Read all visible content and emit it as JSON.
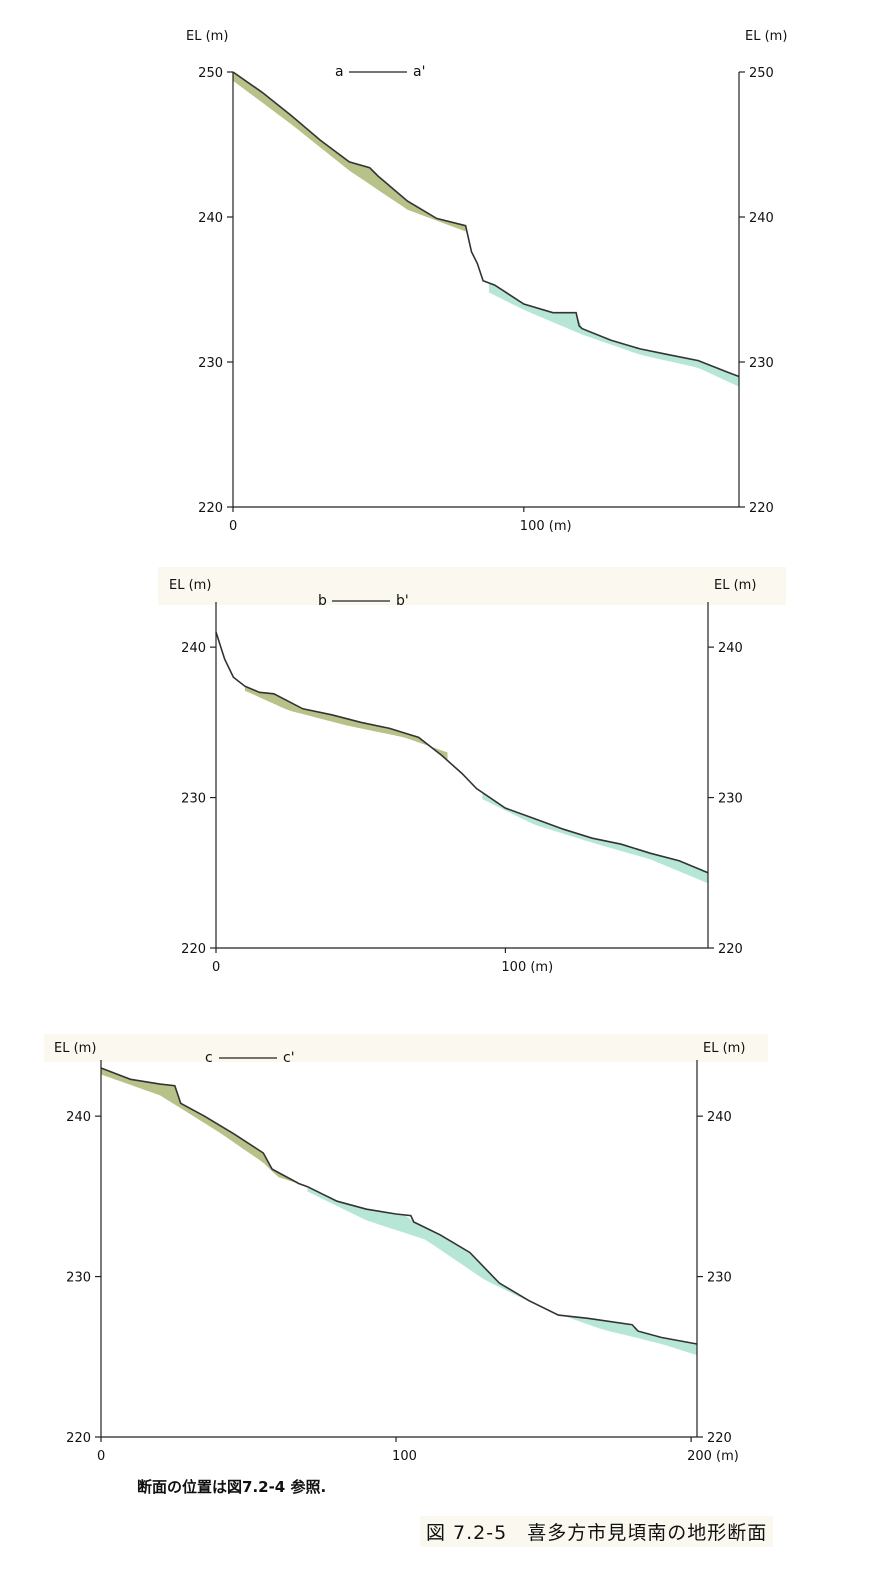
{
  "note": "断面の位置は図7.2-4 参照.",
  "caption": "図 7.2-5　喜多方市見頃南の地形断面",
  "colors": {
    "upper_layer": "#a9b772",
    "lower_layer": "#a8e2cf",
    "line": "#333333"
  },
  "chart_data": [
    {
      "type": "area",
      "section_label": {
        "start": "a",
        "end": "a'"
      },
      "ylabel_left": "EL (m)",
      "ylabel_right": "EL (m)",
      "ylim": [
        220,
        250
      ],
      "yticks": [
        "220",
        "230",
        "240",
        "250"
      ],
      "xlim": [
        0,
        174
      ],
      "xticks": [
        {
          "v": 0,
          "label": "0"
        },
        {
          "v": 100,
          "label": "100 (m)"
        }
      ],
      "ground_profile": {
        "x": [
          0,
          10,
          20,
          30,
          40,
          47,
          49,
          50,
          60,
          70,
          80,
          82,
          84,
          86,
          90,
          100,
          110,
          118,
          119,
          120,
          130,
          140,
          150,
          160,
          170,
          174
        ],
        "y": [
          250,
          248.6,
          247,
          245.3,
          243.8,
          243.4,
          243.0,
          242.8,
          241.1,
          239.9,
          239.4,
          237.6,
          236.8,
          235.6,
          235.3,
          234.0,
          233.4,
          233.4,
          232.5,
          232.3,
          231.5,
          230.9,
          230.5,
          230.1,
          229.3,
          229.0
        ]
      },
      "layers": [
        {
          "name": "upper",
          "x": [
            0,
            20,
            40,
            60,
            80
          ],
          "bottom": [
            249.4,
            246.4,
            243.2,
            240.5,
            239.0
          ]
        },
        {
          "name": "lower",
          "x": [
            88,
            100,
            120,
            140,
            160,
            174
          ],
          "bottom": [
            234.8,
            233.6,
            231.9,
            230.5,
            229.6,
            228.3
          ]
        }
      ]
    },
    {
      "type": "area",
      "section_label": {
        "start": "b",
        "end": "b'"
      },
      "ylabel_left": "EL (m)",
      "ylabel_right": "EL (m)",
      "ylim": [
        220,
        243
      ],
      "yticks": [
        "220",
        "230",
        "240"
      ],
      "xlim": [
        0,
        170
      ],
      "xticks": [
        {
          "v": 0,
          "label": "0"
        },
        {
          "v": 100,
          "label": "100 (m)"
        }
      ],
      "ground_profile": {
        "x": [
          0,
          3,
          6,
          10,
          15,
          20,
          30,
          40,
          50,
          60,
          70,
          78,
          85,
          90,
          100,
          110,
          120,
          130,
          140,
          150,
          160,
          170
        ],
        "y": [
          241.0,
          239.2,
          238.0,
          237.4,
          237.0,
          236.9,
          235.9,
          235.5,
          235.0,
          234.6,
          234.0,
          232.8,
          231.6,
          230.6,
          229.3,
          228.6,
          227.9,
          227.3,
          226.9,
          226.3,
          225.8,
          225.0
        ]
      },
      "layers": [
        {
          "name": "upper",
          "x": [
            10,
            25,
            45,
            65,
            80
          ],
          "bottom": [
            237.1,
            235.8,
            234.8,
            234.0,
            233.0
          ]
        },
        {
          "name": "lower",
          "x": [
            92,
            110,
            130,
            150,
            170
          ],
          "bottom": [
            229.9,
            228.2,
            227.0,
            225.9,
            224.3
          ]
        }
      ]
    },
    {
      "type": "area",
      "section_label": {
        "start": "c",
        "end": "c'"
      },
      "ylabel_left": "EL (m)",
      "ylabel_right": "EL (m)",
      "ylim": [
        220,
        243.5
      ],
      "yticks": [
        "220",
        "230",
        "240"
      ],
      "xlim": [
        0,
        202
      ],
      "xticks": [
        {
          "v": 0,
          "label": "0"
        },
        {
          "v": 100,
          "label": "100"
        },
        {
          "v": 200,
          "label": "200 (m)"
        }
      ],
      "ground_profile": {
        "x": [
          0,
          10,
          20,
          25,
          27,
          35,
          45,
          55,
          58,
          62,
          67,
          70,
          80,
          90,
          100,
          105,
          106,
          115,
          125,
          135,
          145,
          155,
          165,
          180,
          182,
          190,
          202
        ],
        "y": [
          243.0,
          242.3,
          242.0,
          241.9,
          240.8,
          240.0,
          238.9,
          237.7,
          236.7,
          236.3,
          235.8,
          235.6,
          234.7,
          234.2,
          233.9,
          233.8,
          233.4,
          232.6,
          231.5,
          229.6,
          228.5,
          227.6,
          227.4,
          227.0,
          226.6,
          226.2,
          225.8
        ]
      },
      "layers": [
        {
          "name": "upper",
          "x": [
            0,
            20,
            40,
            55,
            60,
            67
          ],
          "bottom": [
            242.6,
            241.3,
            239.0,
            237.1,
            236.2,
            235.8
          ]
        },
        {
          "name": "lower",
          "x": [
            70,
            90,
            110,
            130,
            150,
            170,
            190,
            202
          ],
          "bottom": [
            235.3,
            233.5,
            232.3,
            229.8,
            228.0,
            226.7,
            225.8,
            225.1
          ]
        }
      ]
    }
  ]
}
